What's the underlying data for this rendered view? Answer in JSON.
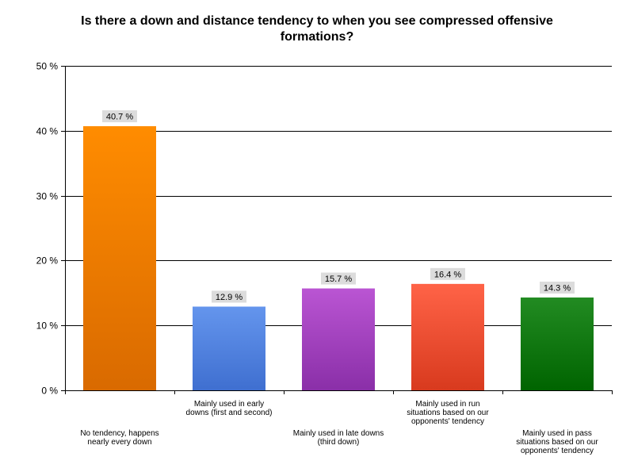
{
  "chart_data": {
    "type": "bar",
    "title": "Is there a down and distance tendency to when you see compressed offensive formations?",
    "xlabel": "",
    "ylabel": "",
    "ylim": [
      0,
      50
    ],
    "yticks": [
      0,
      10,
      20,
      30,
      40,
      50
    ],
    "ytick_labels": [
      "0 %",
      "10 %",
      "20 %",
      "30 %",
      "40 %",
      "50 %"
    ],
    "grid": true,
    "legend": "none",
    "categories": [
      "No tendency, happens nearly every down",
      "Mainly used in early downs (first and second)",
      "Mainly used in late downs (third down)",
      "Mainly used in run situations based on our opponents' tendency",
      "Mainly used in pass situations based on our opponents' tendency"
    ],
    "values": [
      40.7,
      12.9,
      15.7,
      16.4,
      14.3
    ],
    "data_labels": [
      "40.7 %",
      "12.9 %",
      "15.7 %",
      "16.4 %",
      "14.3 %"
    ],
    "colors": [
      [
        "#ff8c00",
        "#d96a00"
      ],
      [
        "#6495ed",
        "#3f6fd0"
      ],
      [
        "#ba55d3",
        "#8a2fa8"
      ],
      [
        "#ff6347",
        "#d83a1e"
      ],
      [
        "#228b22",
        "#006400"
      ]
    ]
  }
}
